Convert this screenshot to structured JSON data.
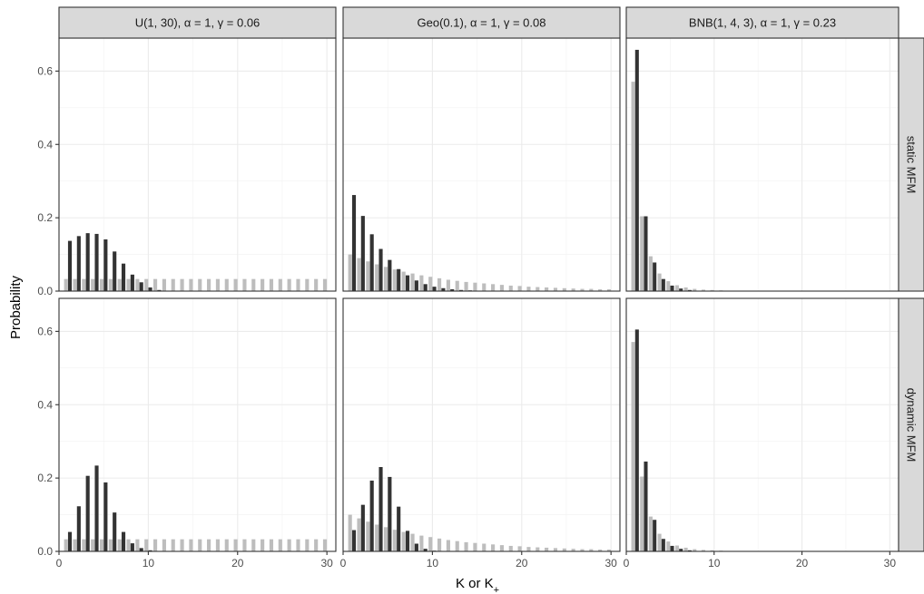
{
  "chart_data": {
    "type": "bar",
    "layout": "faceted grid 2x3",
    "xlabel": "K or K+",
    "ylabel": "Probability",
    "xlim": [
      0,
      31
    ],
    "ylim": [
      0,
      0.69
    ],
    "x_ticks": [
      0,
      10,
      20,
      30
    ],
    "y_ticks": [
      0.0,
      0.2,
      0.4,
      0.6
    ],
    "y_tick_labels": [
      "0.0",
      "0.2",
      "0.4",
      "0.6"
    ],
    "grid": true,
    "legend": "none",
    "x": [
      1,
      2,
      3,
      4,
      5,
      6,
      7,
      8,
      9,
      10,
      11,
      12,
      13,
      14,
      15,
      16,
      17,
      18,
      19,
      20,
      21,
      22,
      23,
      24,
      25,
      26,
      27,
      28,
      29,
      30
    ],
    "bar_colors": {
      "K": "#bdbdbd",
      "K_plus": "#333333"
    },
    "columns": [
      {
        "label": "U(1, 30), α = 1, γ = 0.06"
      },
      {
        "label": "Geo(0.1), α = 1, γ = 0.08"
      },
      {
        "label": "BNB(1, 4, 3), α = 1, γ = 0.23"
      }
    ],
    "rows": [
      {
        "label": "static MFM"
      },
      {
        "label": "dynamic MFM"
      }
    ],
    "series": [
      {
        "key": "K"
      },
      {
        "key": "K_plus"
      }
    ],
    "panels": [
      {
        "col": 0,
        "row": 0,
        "K": [
          0.033,
          0.033,
          0.033,
          0.033,
          0.033,
          0.033,
          0.033,
          0.033,
          0.033,
          0.033,
          0.033,
          0.033,
          0.033,
          0.033,
          0.033,
          0.033,
          0.033,
          0.033,
          0.033,
          0.033,
          0.033,
          0.033,
          0.033,
          0.033,
          0.033,
          0.033,
          0.033,
          0.033,
          0.033,
          0.033
        ],
        "K_plus": [
          0.137,
          0.15,
          0.158,
          0.156,
          0.141,
          0.108,
          0.075,
          0.045,
          0.024,
          0.01,
          0.003,
          0.001,
          0,
          0,
          0,
          0,
          0,
          0,
          0,
          0,
          0,
          0,
          0,
          0,
          0,
          0,
          0,
          0,
          0,
          0
        ]
      },
      {
        "col": 1,
        "row": 0,
        "K": [
          0.1,
          0.09,
          0.081,
          0.073,
          0.066,
          0.059,
          0.053,
          0.048,
          0.043,
          0.039,
          0.035,
          0.031,
          0.028,
          0.025,
          0.023,
          0.021,
          0.019,
          0.017,
          0.015,
          0.014,
          0.012,
          0.011,
          0.01,
          0.009,
          0.008,
          0.007,
          0.006,
          0.006,
          0.005,
          0.005
        ],
        "K_plus": [
          0.262,
          0.205,
          0.155,
          0.115,
          0.085,
          0.06,
          0.043,
          0.029,
          0.019,
          0.012,
          0.008,
          0.005,
          0.003,
          0.002,
          0.001,
          0,
          0,
          0,
          0,
          0,
          0,
          0,
          0,
          0,
          0,
          0,
          0,
          0,
          0,
          0
        ]
      },
      {
        "col": 2,
        "row": 0,
        "K": [
          0.571,
          0.204,
          0.095,
          0.048,
          0.027,
          0.016,
          0.01,
          0.006,
          0.004,
          0.003,
          0.002,
          0.001,
          0.001,
          0.001,
          0,
          0,
          0,
          0,
          0,
          0,
          0,
          0,
          0,
          0,
          0,
          0,
          0,
          0,
          0,
          0
        ],
        "K_plus": [
          0.658,
          0.204,
          0.078,
          0.033,
          0.015,
          0.007,
          0.003,
          0.001,
          0,
          0,
          0,
          0,
          0,
          0,
          0,
          0,
          0,
          0,
          0,
          0,
          0,
          0,
          0,
          0,
          0,
          0,
          0,
          0,
          0,
          0
        ]
      },
      {
        "col": 0,
        "row": 1,
        "K": [
          0.033,
          0.033,
          0.033,
          0.033,
          0.033,
          0.033,
          0.033,
          0.033,
          0.033,
          0.033,
          0.033,
          0.033,
          0.033,
          0.033,
          0.033,
          0.033,
          0.033,
          0.033,
          0.033,
          0.033,
          0.033,
          0.033,
          0.033,
          0.033,
          0.033,
          0.033,
          0.033,
          0.033,
          0.033,
          0.033
        ],
        "K_plus": [
          0.053,
          0.123,
          0.206,
          0.234,
          0.188,
          0.106,
          0.053,
          0.022,
          0.009,
          0.003,
          0.001,
          0,
          0,
          0,
          0,
          0,
          0,
          0,
          0,
          0,
          0,
          0,
          0,
          0,
          0,
          0,
          0,
          0,
          0,
          0
        ]
      },
      {
        "col": 1,
        "row": 1,
        "K": [
          0.1,
          0.09,
          0.081,
          0.073,
          0.066,
          0.059,
          0.053,
          0.048,
          0.043,
          0.039,
          0.035,
          0.031,
          0.028,
          0.025,
          0.023,
          0.021,
          0.019,
          0.017,
          0.015,
          0.014,
          0.012,
          0.011,
          0.01,
          0.009,
          0.008,
          0.007,
          0.006,
          0.006,
          0.005,
          0.005
        ],
        "K_plus": [
          0.058,
          0.127,
          0.193,
          0.23,
          0.203,
          0.122,
          0.056,
          0.021,
          0.007,
          0.002,
          0.001,
          0,
          0,
          0,
          0,
          0,
          0,
          0,
          0,
          0,
          0,
          0,
          0,
          0,
          0,
          0,
          0,
          0,
          0,
          0
        ]
      },
      {
        "col": 2,
        "row": 1,
        "K": [
          0.571,
          0.204,
          0.095,
          0.048,
          0.027,
          0.016,
          0.01,
          0.006,
          0.004,
          0.003,
          0.002,
          0.001,
          0.001,
          0.001,
          0,
          0,
          0,
          0,
          0,
          0,
          0,
          0,
          0,
          0,
          0,
          0,
          0,
          0,
          0,
          0
        ],
        "K_plus": [
          0.605,
          0.245,
          0.086,
          0.034,
          0.015,
          0.007,
          0.003,
          0.001,
          0,
          0,
          0,
          0,
          0,
          0,
          0,
          0,
          0,
          0,
          0,
          0,
          0,
          0,
          0,
          0,
          0,
          0,
          0,
          0,
          0,
          0
        ]
      }
    ]
  }
}
